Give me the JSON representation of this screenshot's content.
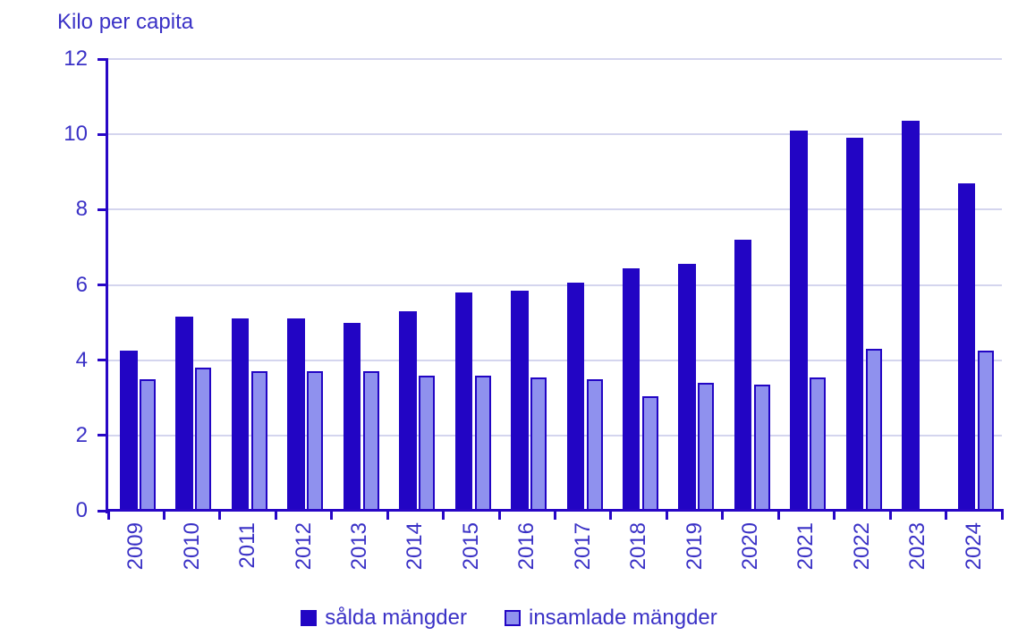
{
  "title": "Kilo per capita",
  "colors": {
    "sold_bar": "#2205c4",
    "collected_fill": "#8f91ee",
    "collected_border": "#2205c4",
    "axis": "#2807c6",
    "grid": "#d4d5ee",
    "text": "#3a31c6"
  },
  "chart_data": {
    "type": "bar",
    "title": "Kilo per capita",
    "categories": [
      "2009",
      "2010",
      "2011",
      "2012",
      "2013",
      "2014",
      "2015",
      "2016",
      "2017",
      "2018",
      "2019",
      "2020",
      "2021",
      "2022",
      "2023",
      "2024"
    ],
    "series": [
      {
        "name": "sålda mängder",
        "values": [
          4.25,
          5.15,
          5.1,
          5.1,
          5.0,
          5.3,
          5.8,
          5.85,
          6.05,
          6.45,
          6.55,
          7.2,
          10.1,
          9.9,
          10.35,
          8.7
        ]
      },
      {
        "name": "insamlade mängder",
        "values": [
          3.5,
          3.8,
          3.7,
          3.7,
          3.7,
          3.6,
          3.6,
          3.55,
          3.5,
          3.05,
          3.4,
          3.35,
          3.55,
          4.3,
          null,
          4.25
        ]
      }
    ],
    "ylabel": "Kilo per capita",
    "xlabel": "",
    "ylim": [
      0,
      12
    ],
    "yticks": [
      0,
      2,
      4,
      6,
      8,
      10,
      12
    ],
    "grid": true,
    "legend_position": "bottom"
  }
}
